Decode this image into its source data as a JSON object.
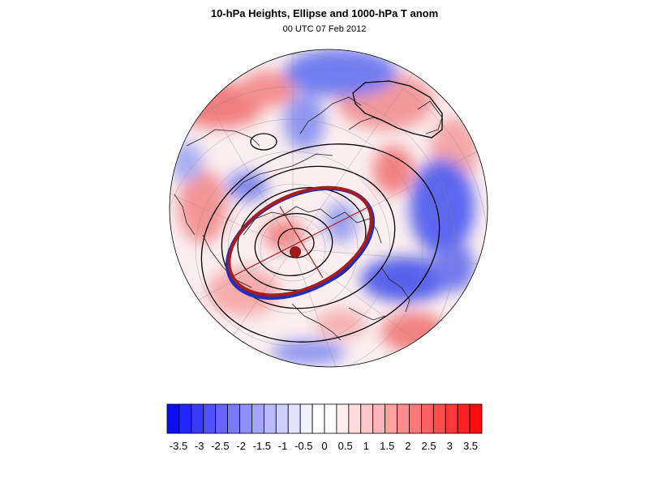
{
  "header": {
    "title": "10-hPa Heights, Ellipse and 1000-hPa T anom",
    "subtitle": "00 UTC 07 Feb 2012"
  },
  "colorbar": {
    "labels": [
      "-3.5",
      "-3",
      "-2.5",
      "-2",
      "-1.5",
      "-1",
      "-0.5",
      "0",
      "0.5",
      "1",
      "1.5",
      "2",
      "2.5",
      "3",
      "3.5"
    ],
    "colors": [
      "#0d0dff",
      "#2525ff",
      "#3a3aff",
      "#5050ff",
      "#6464ff",
      "#7a7aff",
      "#8f8fff",
      "#a5a5ff",
      "#babaff",
      "#cfcfff",
      "#e3e3ff",
      "#f3f3ff",
      "#ffffff",
      "#ffffff",
      "#ffeeee",
      "#ffdcdc",
      "#ffc9c9",
      "#ffb5b5",
      "#ffa1a1",
      "#ff8c8c",
      "#ff7777",
      "#ff6262",
      "#ff4d4d",
      "#ff3838",
      "#ff2222",
      "#ff0d0d"
    ]
  },
  "map": {
    "anomaly_blue": "#3b3bf0",
    "anomaly_red": "#ef5050",
    "ellipse_color": "#a51e1e",
    "ellipse_edge_blue": "#1f2fbf",
    "contour_color": "#000000"
  }
}
